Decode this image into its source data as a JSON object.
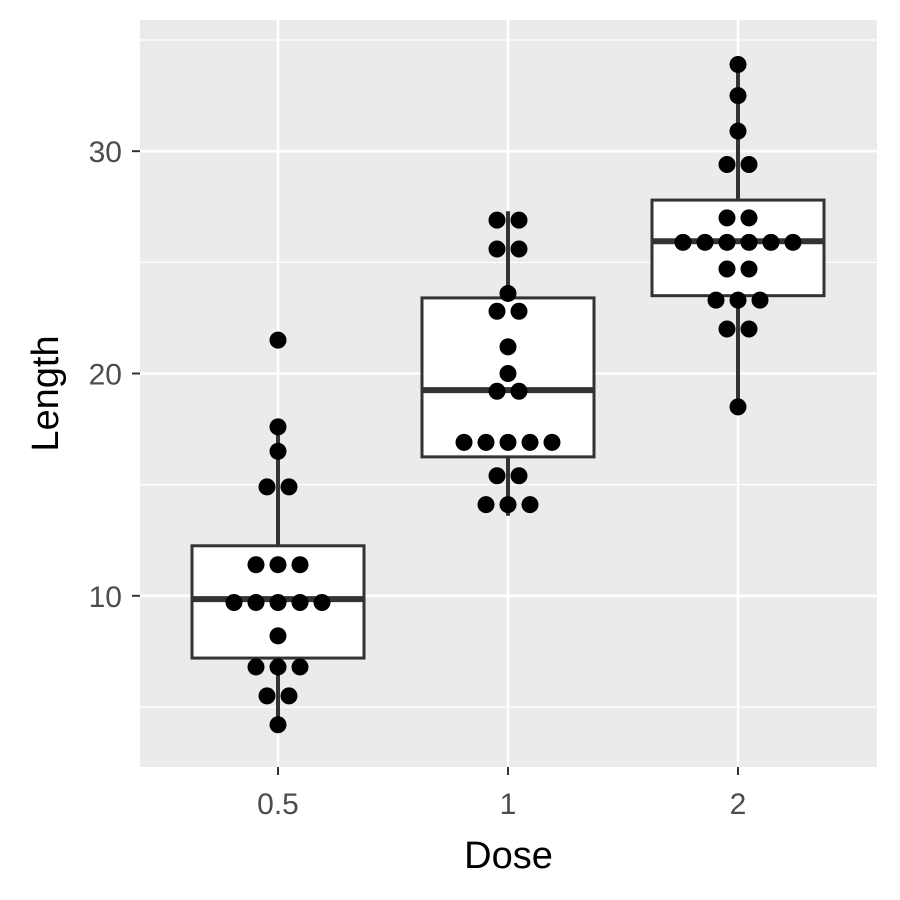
{
  "chart_data": {
    "type": "boxplot",
    "title": "",
    "xlabel": "Dose",
    "ylabel": "Length",
    "categories": [
      "0.5",
      "1",
      "2"
    ],
    "y_ticks": [
      10,
      20,
      30
    ],
    "ylim": [
      2.3,
      35.9
    ],
    "grid": true,
    "legend": "none",
    "colors": {
      "panel_background": "#ebebeb",
      "grid_line": "#ffffff",
      "box_fill": "#ffffff",
      "box_stroke": "#333333",
      "point_fill": "#000000",
      "tick_text": "#4d4d4d",
      "axis_title_text": "#000000"
    },
    "boxes": [
      {
        "category": "0.5",
        "lower_whisker": 4.2,
        "q1": 7.2,
        "median": 9.85,
        "q3": 12.25,
        "upper_whisker": 17.6
      },
      {
        "category": "1",
        "lower_whisker": 13.6,
        "q1": 16.25,
        "median": 19.25,
        "q3": 23.4,
        "upper_whisker": 27.3
      },
      {
        "category": "2",
        "lower_whisker": 18.5,
        "q1": 23.5,
        "median": 25.95,
        "q3": 27.8,
        "upper_whisker": 33.9
      }
    ],
    "points": [
      {
        "category": "0.5",
        "values": [
          4.2,
          5.5,
          5.5,
          6.8,
          6.8,
          6.8,
          8.2,
          9.7,
          9.7,
          9.7,
          9.7,
          9.7,
          11.4,
          11.4,
          11.4,
          14.9,
          14.9,
          16.5,
          17.6,
          21.5
        ]
      },
      {
        "category": "1",
        "values": [
          14.1,
          14.1,
          14.1,
          15.4,
          15.4,
          16.9,
          16.9,
          16.9,
          16.9,
          16.9,
          19.2,
          19.2,
          20.0,
          21.2,
          22.8,
          22.8,
          23.6,
          25.6,
          25.6,
          26.9,
          26.9
        ]
      },
      {
        "category": "2",
        "values": [
          18.5,
          22.0,
          22.0,
          23.3,
          23.3,
          23.3,
          24.7,
          24.7,
          25.9,
          25.9,
          25.9,
          25.9,
          25.9,
          25.9,
          27.0,
          27.0,
          29.4,
          29.4,
          30.9,
          32.5,
          33.9
        ]
      }
    ]
  }
}
